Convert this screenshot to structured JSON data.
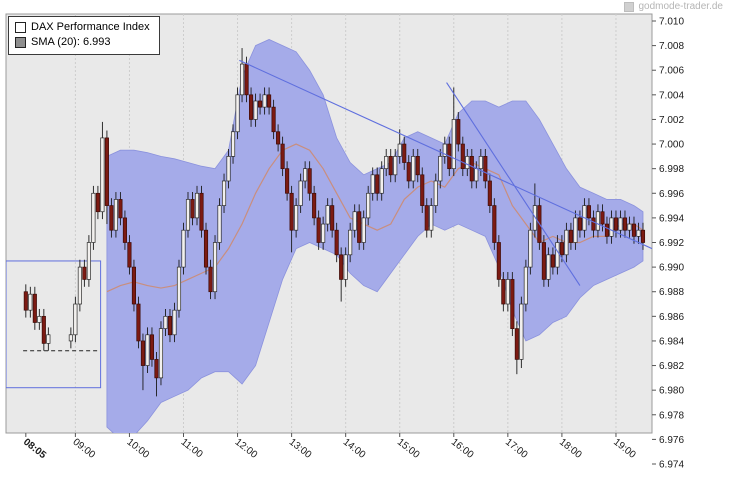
{
  "watermark": {
    "text": "godmode-trader.de"
  },
  "legend": {
    "series1": "DAX Performance Index",
    "series2": "SMA (20): 6.993"
  },
  "chart_data": {
    "type": "candlestick",
    "title": "DAX Performance Index",
    "overlays": [
      "SMA (20)",
      "volatility band"
    ],
    "sma_current": 6.993,
    "ylim": [
      6.974,
      7.01
    ],
    "y_ticks": [
      "7.010",
      "7.008",
      "7.006",
      "7.004",
      "7.002",
      "7.000",
      "6.998",
      "6.996",
      "6.994",
      "6.992",
      "6.990",
      "6.988",
      "6.986",
      "6.984",
      "6.982",
      "6.980",
      "6.978",
      "6.976",
      "6.974"
    ],
    "xlim_minutes": [
      463,
      1180
    ],
    "x_labels": [
      {
        "t": 485,
        "label": "08:05",
        "bold": true
      },
      {
        "t": 540,
        "label": "09:00"
      },
      {
        "t": 600,
        "label": "10:00"
      },
      {
        "t": 660,
        "label": "11:00"
      },
      {
        "t": 720,
        "label": "12:00"
      },
      {
        "t": 780,
        "label": "13:00"
      },
      {
        "t": 840,
        "label": "14:00"
      },
      {
        "t": 900,
        "label": "15:00"
      },
      {
        "t": 960,
        "label": "16:00"
      },
      {
        "t": 1020,
        "label": "17:00"
      },
      {
        "t": 1080,
        "label": "18:00"
      },
      {
        "t": 1140,
        "label": "19:00"
      }
    ],
    "default_wick": 0.0006,
    "candle_segments": [
      {
        "start_minute": 485,
        "step": 5,
        "first_open": 6.988,
        "closes": [
          6.9865,
          6.9878,
          6.9855,
          6.986,
          6.9838,
          6.9845
        ]
      },
      {
        "start_minute": 535,
        "step": 5,
        "first_open": 6.984,
        "closes": [
          6.9845,
          6.987,
          6.99,
          6.989,
          6.992,
          6.996,
          6.9945,
          7.0005,
          6.995,
          6.993,
          6.9955,
          6.994,
          6.992,
          6.99,
          6.987,
          6.984,
          6.982,
          6.9845,
          6.9825,
          6.981,
          6.985,
          6.986,
          6.9845,
          6.9865,
          6.99,
          6.993,
          6.9955,
          6.994,
          6.996,
          6.993,
          6.99,
          6.988,
          6.992,
          6.995,
          6.997,
          6.999,
          7.001,
          7.004,
          7.0065,
          7.004,
          7.002,
          7.0035,
          7.003,
          7.004,
          7.003,
          7.001,
          7.0,
          6.998,
          6.996,
          6.993,
          6.995,
          6.997,
          6.998,
          6.996,
          6.994,
          6.992,
          6.9935,
          6.995,
          6.993,
          6.991,
          6.989,
          6.991,
          6.993,
          6.9945,
          6.992,
          6.994,
          6.996,
          6.9975,
          6.996,
          6.998,
          6.999,
          6.9975,
          6.999,
          7.0,
          6.9985,
          6.997,
          6.999,
          6.9975,
          6.995,
          6.993,
          6.995,
          6.997,
          6.999,
          7.0,
          6.998,
          7.002,
          7.0,
          6.998,
          6.999,
          6.997,
          6.998,
          6.999,
          6.997,
          6.995,
          6.992,
          6.989,
          6.987,
          6.989,
          6.985,
          6.9825,
          6.987,
          6.99,
          6.993,
          6.995,
          6.992,
          6.989,
          6.991,
          6.99,
          6.992,
          6.991,
          6.993,
          6.992,
          6.994,
          6.993,
          6.995,
          6.994,
          6.993,
          6.9945,
          6.9935,
          6.9925,
          6.994,
          6.993,
          6.994,
          6.993,
          6.9935,
          6.9925,
          6.993,
          6.992
        ]
      }
    ],
    "wick_overrides": {
      "570": {
        "h": 7.0018
      },
      "575": {
        "l": 6.9935
      },
      "615": {
        "l": 6.98
      },
      "630": {
        "l": 6.9795
      },
      "725": {
        "h": 7.0078
      },
      "780": {
        "l": 6.9912
      },
      "835": {
        "l": 6.9872
      },
      "900": {
        "h": 7.0012
      },
      "960": {
        "h": 7.0046
      },
      "1030": {
        "l": 6.9813
      },
      "1035": {
        "l": 6.9818
      },
      "1050": {
        "h": 6.9968
      }
    },
    "band": [
      [
        575,
        6.999,
        6.977
      ],
      [
        590,
        6.9995,
        6.976
      ],
      [
        605,
        6.9995,
        6.9763
      ],
      [
        620,
        6.9993,
        6.9775
      ],
      [
        635,
        6.999,
        6.979
      ],
      [
        650,
        6.9988,
        6.9795
      ],
      [
        665,
        6.9985,
        6.98
      ],
      [
        680,
        6.9982,
        6.981
      ],
      [
        695,
        6.998,
        6.9815
      ],
      [
        710,
        6.9995,
        6.9815
      ],
      [
        725,
        7.0055,
        6.9805
      ],
      [
        740,
        7.008,
        6.982
      ],
      [
        755,
        7.0085,
        6.9855
      ],
      [
        770,
        7.008,
        6.989
      ],
      [
        785,
        7.0075,
        6.9915
      ],
      [
        800,
        7.006,
        6.992
      ],
      [
        815,
        7.004,
        6.9915
      ],
      [
        830,
        7.0005,
        6.991
      ],
      [
        845,
        6.9985,
        6.9895
      ],
      [
        860,
        6.9975,
        6.9885
      ],
      [
        875,
        6.998,
        6.988
      ],
      [
        890,
        6.9985,
        6.9895
      ],
      [
        905,
        7.0005,
        6.991
      ],
      [
        920,
        7.001,
        6.9925
      ],
      [
        935,
        7.0005,
        6.9935
      ],
      [
        950,
        7.0,
        6.993
      ],
      [
        965,
        7.0025,
        6.9935
      ],
      [
        980,
        7.0035,
        6.993
      ],
      [
        995,
        7.0035,
        6.9925
      ],
      [
        1010,
        7.003,
        6.99
      ],
      [
        1025,
        7.0035,
        6.9865
      ],
      [
        1040,
        7.0035,
        6.984
      ],
      [
        1055,
        7.002,
        6.9845
      ],
      [
        1070,
        7.0,
        6.9855
      ],
      [
        1085,
        6.998,
        6.986
      ],
      [
        1100,
        6.9965,
        6.9875
      ],
      [
        1115,
        6.996,
        6.9885
      ],
      [
        1130,
        6.9955,
        6.989
      ],
      [
        1145,
        6.9955,
        6.9895
      ],
      [
        1160,
        6.995,
        6.99
      ],
      [
        1170,
        6.9945,
        6.9905
      ]
    ],
    "sma": [
      [
        575,
        6.988
      ],
      [
        590,
        6.9885
      ],
      [
        605,
        6.9888
      ],
      [
        620,
        6.9885
      ],
      [
        635,
        6.9883
      ],
      [
        650,
        6.9885
      ],
      [
        665,
        6.989
      ],
      [
        680,
        6.9895
      ],
      [
        695,
        6.99
      ],
      [
        710,
        6.9915
      ],
      [
        725,
        6.9935
      ],
      [
        740,
        6.996
      ],
      [
        755,
        6.998
      ],
      [
        770,
        6.9995
      ],
      [
        785,
        7.0
      ],
      [
        800,
        6.9995
      ],
      [
        815,
        6.998
      ],
      [
        830,
        6.996
      ],
      [
        845,
        6.994
      ],
      [
        860,
        6.9935
      ],
      [
        875,
        6.993
      ],
      [
        890,
        6.9935
      ],
      [
        905,
        6.9955
      ],
      [
        920,
        6.9965
      ],
      [
        935,
        6.997
      ],
      [
        950,
        6.9965
      ],
      [
        965,
        6.998
      ],
      [
        980,
        6.9985
      ],
      [
        995,
        6.998
      ],
      [
        1010,
        6.9975
      ],
      [
        1025,
        6.995
      ],
      [
        1040,
        6.9935
      ],
      [
        1055,
        6.992
      ],
      [
        1070,
        6.9925
      ],
      [
        1085,
        6.992
      ],
      [
        1100,
        6.992
      ],
      [
        1115,
        6.9925
      ],
      [
        1130,
        6.9925
      ],
      [
        1145,
        6.9935
      ],
      [
        1160,
        6.9935
      ],
      [
        1170,
        6.993
      ]
    ],
    "trendlines": [
      {
        "t1": 722,
        "v1": 7.0068,
        "t2": 1180,
        "v2": 6.9915
      },
      {
        "t1": 952,
        "v1": 7.005,
        "t2": 1100,
        "v2": 6.9885
      }
    ],
    "rect_annotation": {
      "t1": 463,
      "v1": 6.9905,
      "t2": 568,
      "v2": 6.9802
    },
    "dashed_annotation": {
      "t1": 482,
      "t2": 565,
      "v": 6.9832
    },
    "colors": {
      "plot_bg": "#e9e9e9",
      "frame": "#9b9b9b",
      "grid": "#cdcdcd",
      "band": "#a5abe9",
      "band_edge": "#8b92dd",
      "up_fill": "#f2f0ee",
      "up_border": "#2b2b2b",
      "down_fill": "#7c1a12",
      "down_border": "#3c0c08",
      "wick": "#1a1a1a",
      "sma": "#c98e7e",
      "trend": "#5f6fde",
      "dashed": "#222222",
      "tick": "#555555"
    }
  }
}
